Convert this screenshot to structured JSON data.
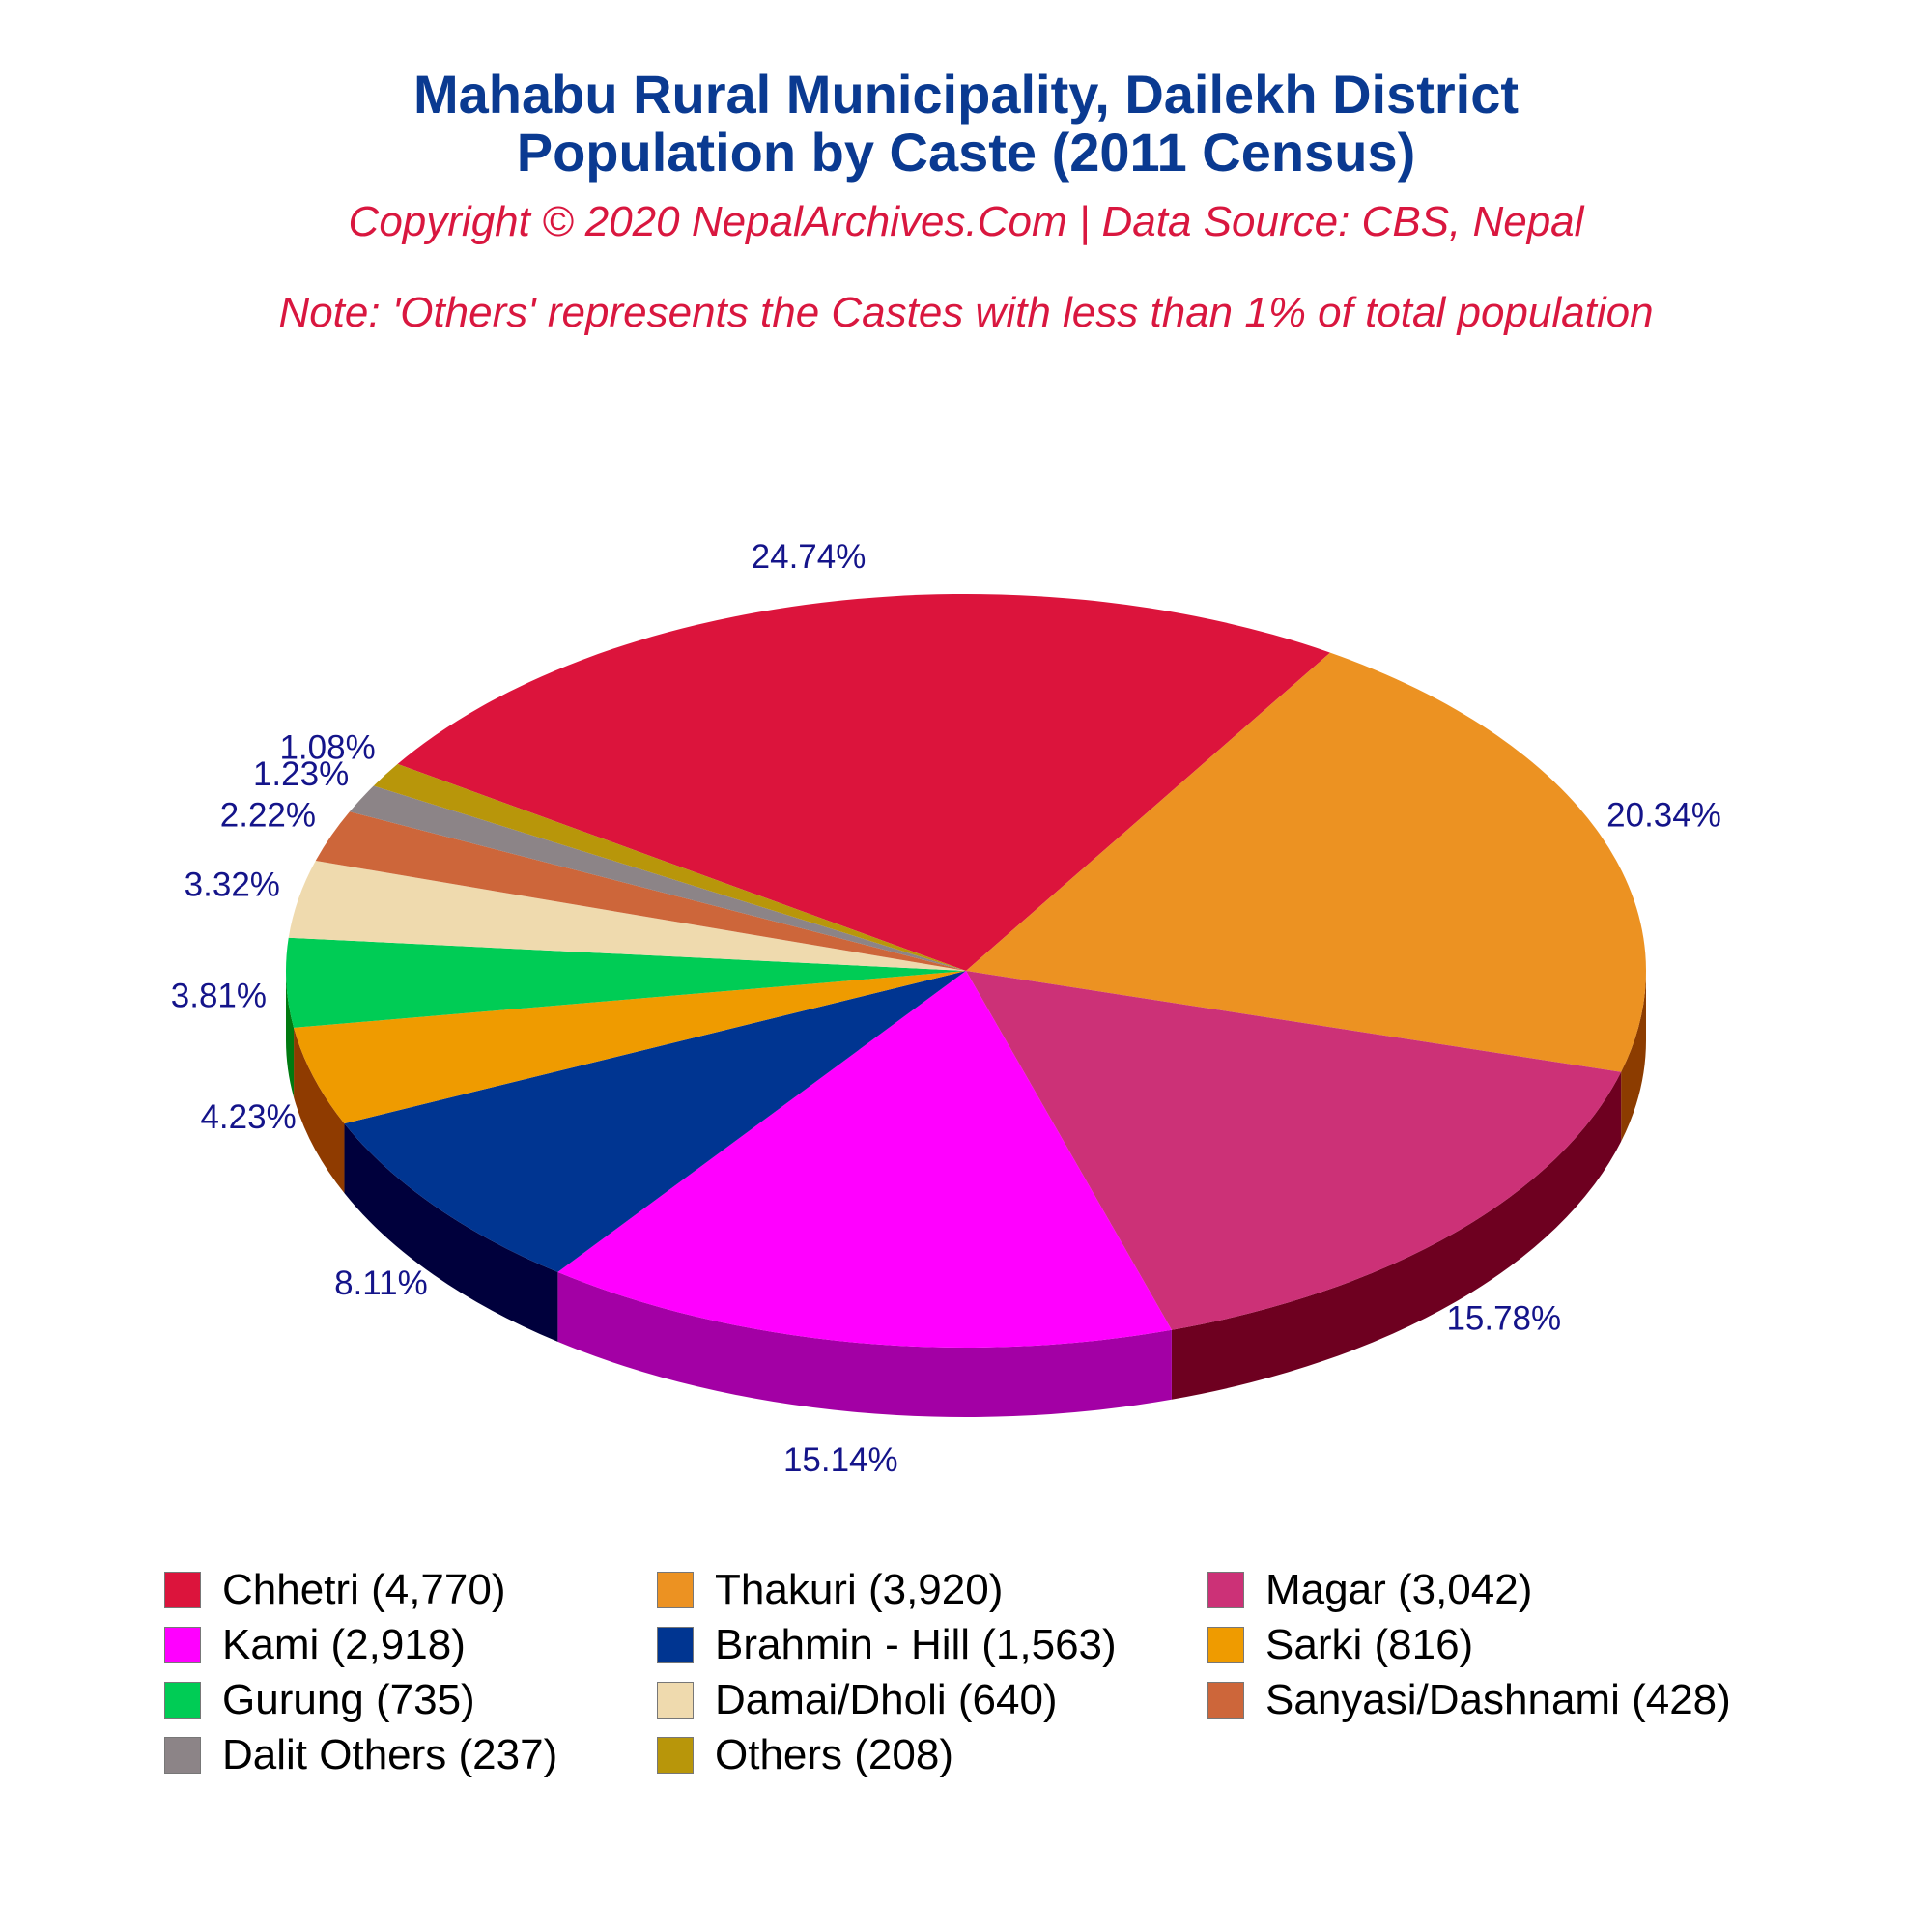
{
  "header": {
    "title_line1": "Mahabu Rural Municipality, Dailekh District",
    "title_line2": "Population by Caste (2011 Census)",
    "copyright": "Copyright © 2020 NepalArchives.Com | Data Source: CBS, Nepal",
    "note": "Note: 'Others' represents the Castes with less than 1% of total population"
  },
  "chart_data": {
    "type": "pie",
    "style": "3d",
    "legend_position": "bottom",
    "slices": [
      {
        "label": "Chhetri (4,770)",
        "name": "Chhetri",
        "value": 4770,
        "percent": "24.74%",
        "color": "#dc143c",
        "side": "#7a0020"
      },
      {
        "label": "Thakuri (3,920)",
        "name": "Thakuri",
        "value": 3920,
        "percent": "20.34%",
        "color": "#ec9222",
        "side": "#8c3c00"
      },
      {
        "label": "Magar (3,042)",
        "name": "Magar",
        "value": 3042,
        "percent": "15.78%",
        "color": "#cc3177",
        "side": "#6e0020"
      },
      {
        "label": "Kami (2,918)",
        "name": "Kami",
        "value": 2918,
        "percent": "15.14%",
        "color": "#ff00ff",
        "side": "#a300a5"
      },
      {
        "label": "Brahmin - Hill (1,563)",
        "name": "Brahmin - Hill",
        "value": 1563,
        "percent": "8.11%",
        "color": "#003591",
        "side": "#00003c"
      },
      {
        "label": "Sarki (816)",
        "name": "Sarki",
        "value": 816,
        "percent": "4.23%",
        "color": "#ef9b00",
        "side": "#8f3b00"
      },
      {
        "label": "Gurung (735)",
        "name": "Gurung",
        "value": 735,
        "percent": "3.81%",
        "color": "#00cc55",
        "side": "#007a10"
      },
      {
        "label": "Damai/Dholi (640)",
        "name": "Damai/Dholi",
        "value": 640,
        "percent": "3.32%",
        "color": "#efdaae",
        "side": "#958050"
      },
      {
        "label": "Sanyasi/Dashnami (428)",
        "name": "Sanyasi/Dashnami",
        "value": 428,
        "percent": "2.22%",
        "color": "#cd663a",
        "side": "#701a00"
      },
      {
        "label": "Dalit Others (237)",
        "name": "Dalit Others",
        "value": 237,
        "percent": "1.23%",
        "color": "#8c8487",
        "side": "#3d3538"
      },
      {
        "label": "Others (208)",
        "name": "Others",
        "value": 208,
        "percent": "1.08%",
        "color": "#b8960a",
        "side": "#5e4a00"
      }
    ]
  }
}
